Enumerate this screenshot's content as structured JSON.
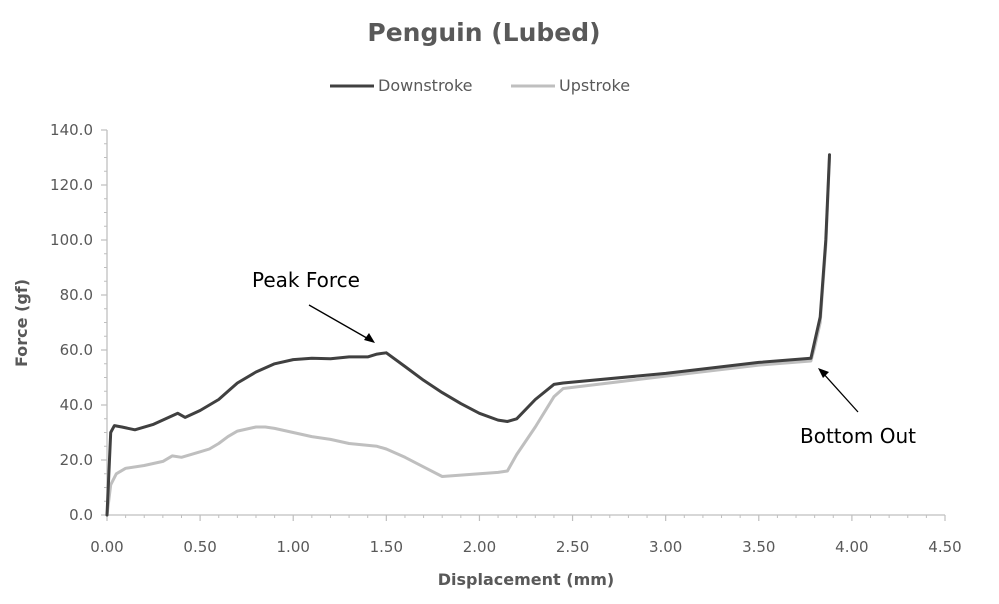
{
  "chart_data": {
    "type": "line",
    "title": "Penguin (Lubed)",
    "xlabel": "Displacement (mm)",
    "ylabel": "Force (gf)",
    "xlim": [
      0,
      4.5
    ],
    "ylim": [
      0,
      140
    ],
    "x_ticks": [
      "0.00",
      "0.50",
      "1.00",
      "1.50",
      "2.00",
      "2.50",
      "3.00",
      "3.50",
      "4.00",
      "4.50"
    ],
    "y_ticks": [
      "0.0",
      "20.0",
      "40.0",
      "60.0",
      "80.0",
      "100.0",
      "120.0",
      "140.0"
    ],
    "legend_position": "top-center",
    "grid": false,
    "series": [
      {
        "name": "Downstroke",
        "color": "#404040",
        "x": [
          0.0,
          0.02,
          0.04,
          0.08,
          0.15,
          0.25,
          0.38,
          0.42,
          0.5,
          0.55,
          0.6,
          0.65,
          0.7,
          0.8,
          0.9,
          1.0,
          1.1,
          1.2,
          1.3,
          1.4,
          1.45,
          1.5,
          1.6,
          1.7,
          1.8,
          1.9,
          2.0,
          2.1,
          2.15,
          2.2,
          2.3,
          2.4,
          2.45,
          3.0,
          3.5,
          3.78,
          3.8,
          3.83,
          3.86,
          3.88
        ],
        "y": [
          0.0,
          30.0,
          32.5,
          32.0,
          31.0,
          33.0,
          37.0,
          35.5,
          38.0,
          40.0,
          42.0,
          45.0,
          48.0,
          52.0,
          55.0,
          56.5,
          57.0,
          56.8,
          57.5,
          57.5,
          58.5,
          59.0,
          54.0,
          49.0,
          44.5,
          40.5,
          37.0,
          34.5,
          34.0,
          35.0,
          42.0,
          47.5,
          48.0,
          51.5,
          55.5,
          57.0,
          63.0,
          72.0,
          100.0,
          131.0
        ]
      },
      {
        "name": "Upstroke",
        "color": "#bfbfbf",
        "x": [
          0.0,
          0.02,
          0.05,
          0.1,
          0.2,
          0.3,
          0.35,
          0.4,
          0.5,
          0.55,
          0.6,
          0.65,
          0.7,
          0.8,
          0.85,
          0.9,
          1.0,
          1.1,
          1.2,
          1.3,
          1.45,
          1.5,
          1.6,
          1.7,
          1.8,
          1.9,
          2.0,
          2.1,
          2.15,
          2.2,
          2.3,
          2.4,
          2.45,
          3.0,
          3.5,
          3.78,
          3.8,
          3.83,
          3.86,
          3.88
        ],
        "y": [
          0.0,
          11.0,
          15.0,
          17.0,
          18.0,
          19.5,
          21.5,
          21.0,
          23.0,
          24.0,
          26.0,
          28.5,
          30.5,
          32.0,
          32.0,
          31.5,
          30.0,
          28.5,
          27.5,
          26.0,
          25.0,
          24.0,
          21.0,
          17.5,
          14.0,
          14.5,
          15.0,
          15.5,
          16.0,
          22.0,
          32.0,
          43.0,
          46.0,
          50.5,
          54.5,
          56.0,
          61.0,
          70.0,
          98.0,
          130.0
        ]
      }
    ],
    "annotations": [
      {
        "text": "Peak Force",
        "target": [
          1.45,
          59.0
        ]
      },
      {
        "text": "Bottom Out",
        "target": [
          3.8,
          54.0
        ]
      }
    ]
  }
}
